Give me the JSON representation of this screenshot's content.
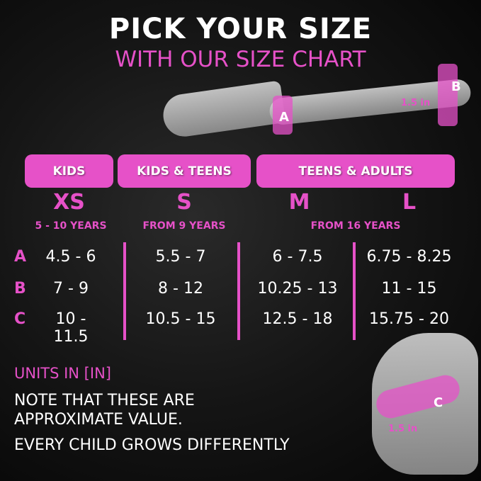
{
  "title": "PICK YOUR SIZE",
  "subtitle": "WITH OUR SIZE CHART",
  "diagram": {
    "label_a": "A",
    "label_b": "B",
    "label_c": "C",
    "measure_top": "1.5 in",
    "measure_bottom": "1.5 in"
  },
  "groups": [
    {
      "label": "KIDS"
    },
    {
      "label": "KIDS & TEENS"
    },
    {
      "label": "TEENS & ADULTS"
    }
  ],
  "sizes": [
    {
      "size": "XS",
      "age": "5 - 10 YEARS"
    },
    {
      "size": "S",
      "age": "FROM 9 YEARS"
    },
    {
      "size": "M",
      "age": "FROM 16 YEARS"
    },
    {
      "size": "L"
    }
  ],
  "rows": [
    {
      "label": "A",
      "values": [
        "4.5 - 6",
        "5.5 - 7",
        "6 - 7.5",
        "6.75 - 8.25"
      ]
    },
    {
      "label": "B",
      "values": [
        "7 - 9",
        "8 - 12",
        "10.25 - 13",
        "11 - 15"
      ]
    },
    {
      "label": "C",
      "values": [
        "10 - 11.5",
        "10.5 - 15",
        "12.5 - 18",
        "15.75 - 20"
      ]
    }
  ],
  "units": "UNITS IN [IN]",
  "note_lines": [
    "NOTE THAT THESE ARE",
    "APPROXIMATE VALUE.",
    "EVERY CHILD GROWS DIFFERENTLY"
  ],
  "colors": {
    "accent": "#e651c8",
    "background": "#111111",
    "text": "#ffffff"
  }
}
